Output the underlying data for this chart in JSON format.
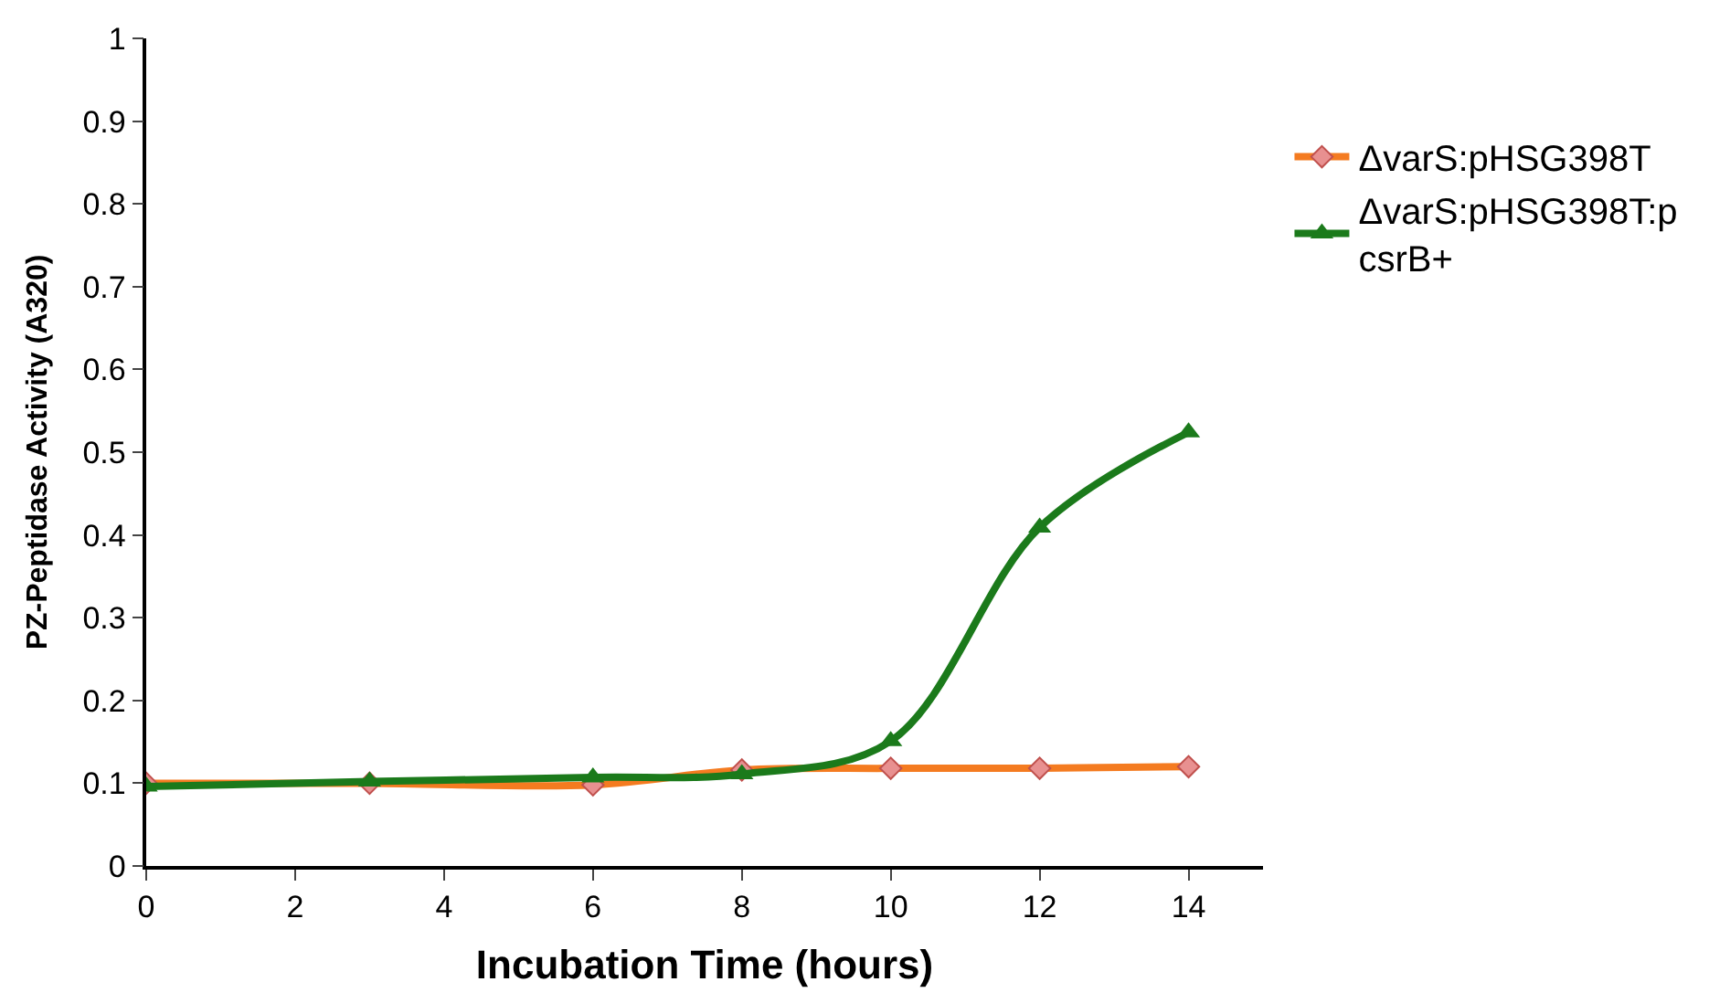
{
  "chart_data": {
    "type": "line",
    "xlabel": "Incubation Time (hours)",
    "ylabel": "PZ-Peptidase Activity (A320)",
    "x": [
      0,
      3,
      6,
      8,
      10,
      12,
      14
    ],
    "series": [
      {
        "name": "ΔvarS:pHSG398T",
        "color": "#f47b20",
        "marker": "diamond",
        "values": [
          0.1,
          0.1,
          0.098,
          0.116,
          0.118,
          0.118,
          0.12
        ]
      },
      {
        "name": "ΔvarS:pHSG398T:pcsrB+",
        "color": "#1b7a1b",
        "marker": "triangle",
        "values": [
          0.096,
          0.102,
          0.107,
          0.111,
          0.151,
          0.409,
          0.524
        ]
      }
    ],
    "xlim": [
      0,
      15
    ],
    "xticks": [
      0,
      2,
      4,
      6,
      8,
      10,
      12,
      14
    ],
    "ylim": [
      0,
      1
    ],
    "yticks": [
      0,
      0.1,
      0.2,
      0.3,
      0.4,
      0.5,
      0.6,
      0.7,
      0.8,
      0.9,
      1
    ],
    "legend": "right",
    "line_style": "solid"
  }
}
